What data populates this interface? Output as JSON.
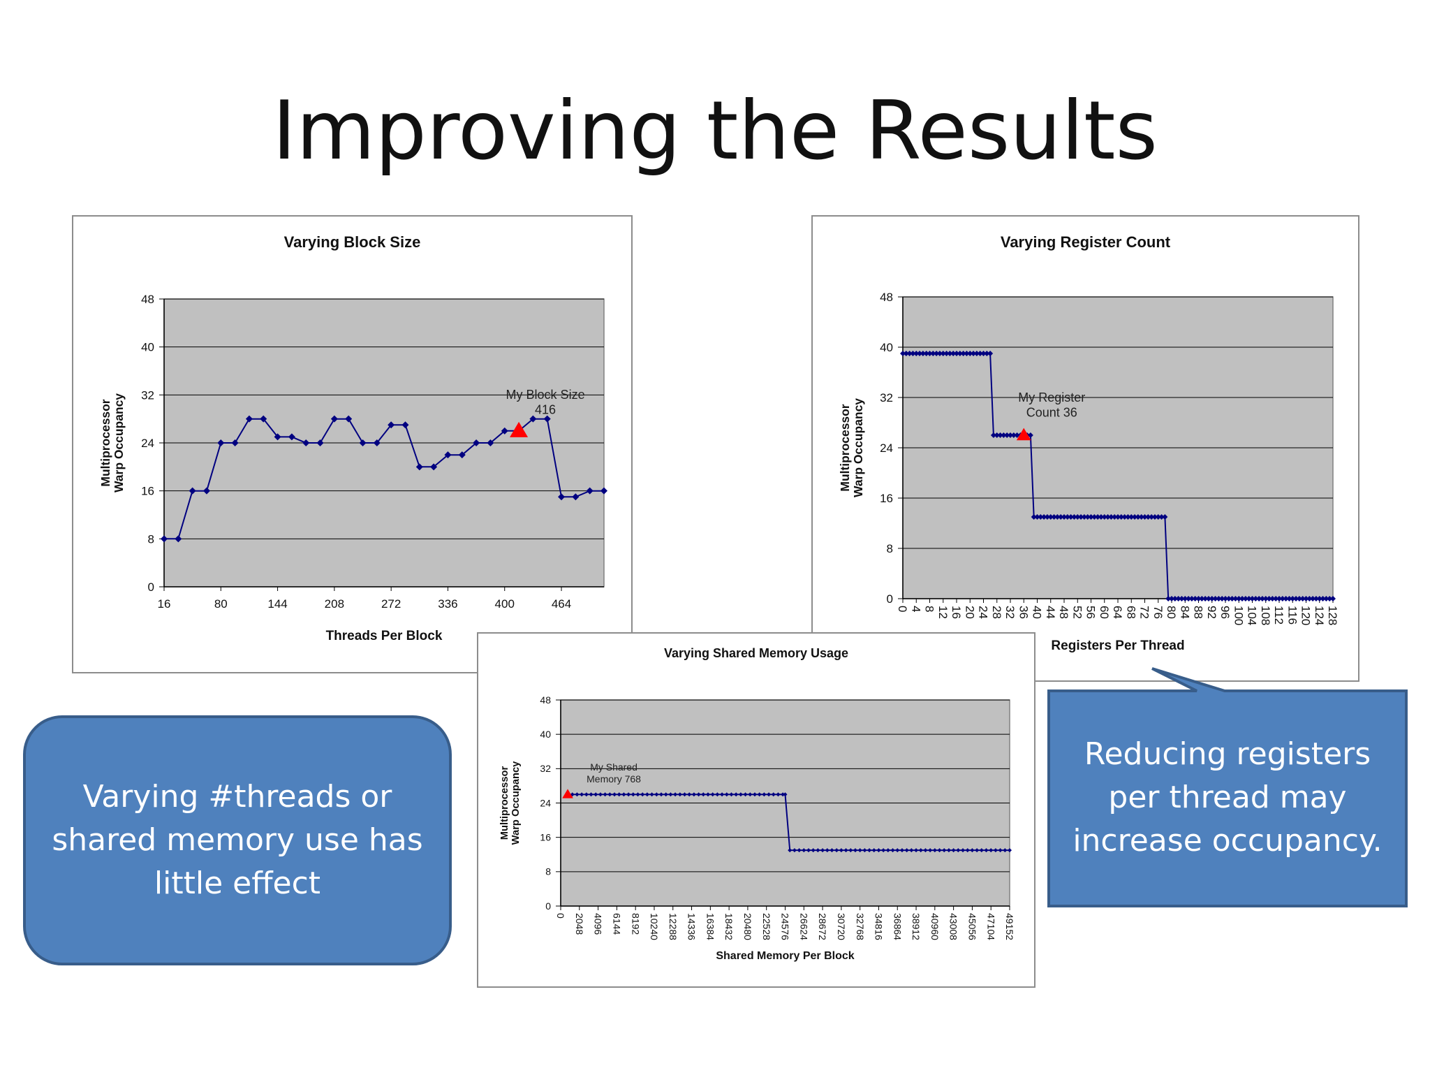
{
  "slide": {
    "title": "Improving the Results"
  },
  "callouts": {
    "left_text": "Varying #threads or shared memory use has little effect",
    "right_text": "Reducing registers per thread may increase occupancy."
  },
  "colors": {
    "plot_bg": "#c0c0c0",
    "series": "#000080",
    "marker_highlight": "#ff0000",
    "callout_fill": "#4f81bd",
    "callout_border": "#385d8a"
  },
  "chart_data": [
    {
      "id": "block",
      "type": "line",
      "title": "Varying Block Size",
      "xlabel": "Threads Per Block",
      "ylabel": "Multiprocessor Warp Occupancy",
      "ylim": [
        0,
        48
      ],
      "yticks": [
        0,
        8,
        16,
        24,
        32,
        40,
        48
      ],
      "xlim": [
        16,
        512
      ],
      "xticks": [
        16,
        80,
        144,
        208,
        272,
        336,
        400,
        464
      ],
      "grid": true,
      "x": [
        16,
        32,
        48,
        64,
        80,
        96,
        112,
        128,
        144,
        160,
        176,
        192,
        208,
        224,
        240,
        256,
        272,
        288,
        304,
        320,
        336,
        352,
        368,
        384,
        400,
        416,
        432,
        448,
        464,
        480,
        496,
        512
      ],
      "y": [
        8,
        8,
        16,
        16,
        24,
        24,
        28,
        28,
        25,
        25,
        24,
        24,
        28,
        28,
        24,
        24,
        27,
        27,
        20,
        20,
        22,
        22,
        24,
        24,
        26,
        26,
        28,
        28,
        15,
        15,
        16,
        16
      ],
      "highlight": {
        "x": 416,
        "y": 26,
        "label": [
          "My Block Size",
          "416"
        ]
      }
    },
    {
      "id": "register",
      "type": "line",
      "title": "Varying Register  Count",
      "xlabel": "Registers Per Thread",
      "ylabel": "Multiprocessor Warp Occupancy",
      "ylim": [
        0,
        48
      ],
      "yticks": [
        0,
        8,
        16,
        24,
        32,
        40,
        48
      ],
      "xlim": [
        0,
        128
      ],
      "xticks": [
        0,
        4,
        8,
        12,
        16,
        20,
        24,
        28,
        32,
        36,
        40,
        44,
        48,
        52,
        56,
        60,
        64,
        68,
        72,
        76,
        80,
        84,
        88,
        92,
        96,
        100,
        104,
        108,
        112,
        116,
        120,
        124,
        128
      ],
      "grid": true,
      "steps": [
        {
          "from": 0,
          "to": 26,
          "y": 39
        },
        {
          "from": 27,
          "to": 38,
          "y": 26
        },
        {
          "from": 39,
          "to": 78,
          "y": 13
        },
        {
          "from": 79,
          "to": 128,
          "y": 0
        }
      ],
      "highlight": {
        "x": 36,
        "y": 26,
        "label": [
          "My Register",
          "Count 36"
        ]
      }
    },
    {
      "id": "shared",
      "type": "line",
      "title": "Varying Shared Memory Usage",
      "xlabel": "Shared Memory Per Block",
      "ylabel": "Multiprocessor Warp Occupancy",
      "ylim": [
        0,
        48
      ],
      "yticks": [
        0,
        8,
        16,
        24,
        32,
        40,
        48
      ],
      "xlim": [
        0,
        49152
      ],
      "xticks": [
        0,
        2048,
        4096,
        6144,
        8192,
        10240,
        12288,
        14336,
        16384,
        18432,
        20480,
        22528,
        24576,
        26624,
        28672,
        30720,
        32768,
        34816,
        36864,
        38912,
        40960,
        43008,
        45056,
        47104,
        49152
      ],
      "grid": true,
      "steps": [
        {
          "from": 768,
          "to": 24576,
          "y": 26
        },
        {
          "from": 25088,
          "to": 49152,
          "y": 13
        }
      ],
      "point_step": 512,
      "highlight": {
        "x": 768,
        "y": 26,
        "label": [
          "My Shared",
          "Memory 768"
        ]
      }
    }
  ]
}
